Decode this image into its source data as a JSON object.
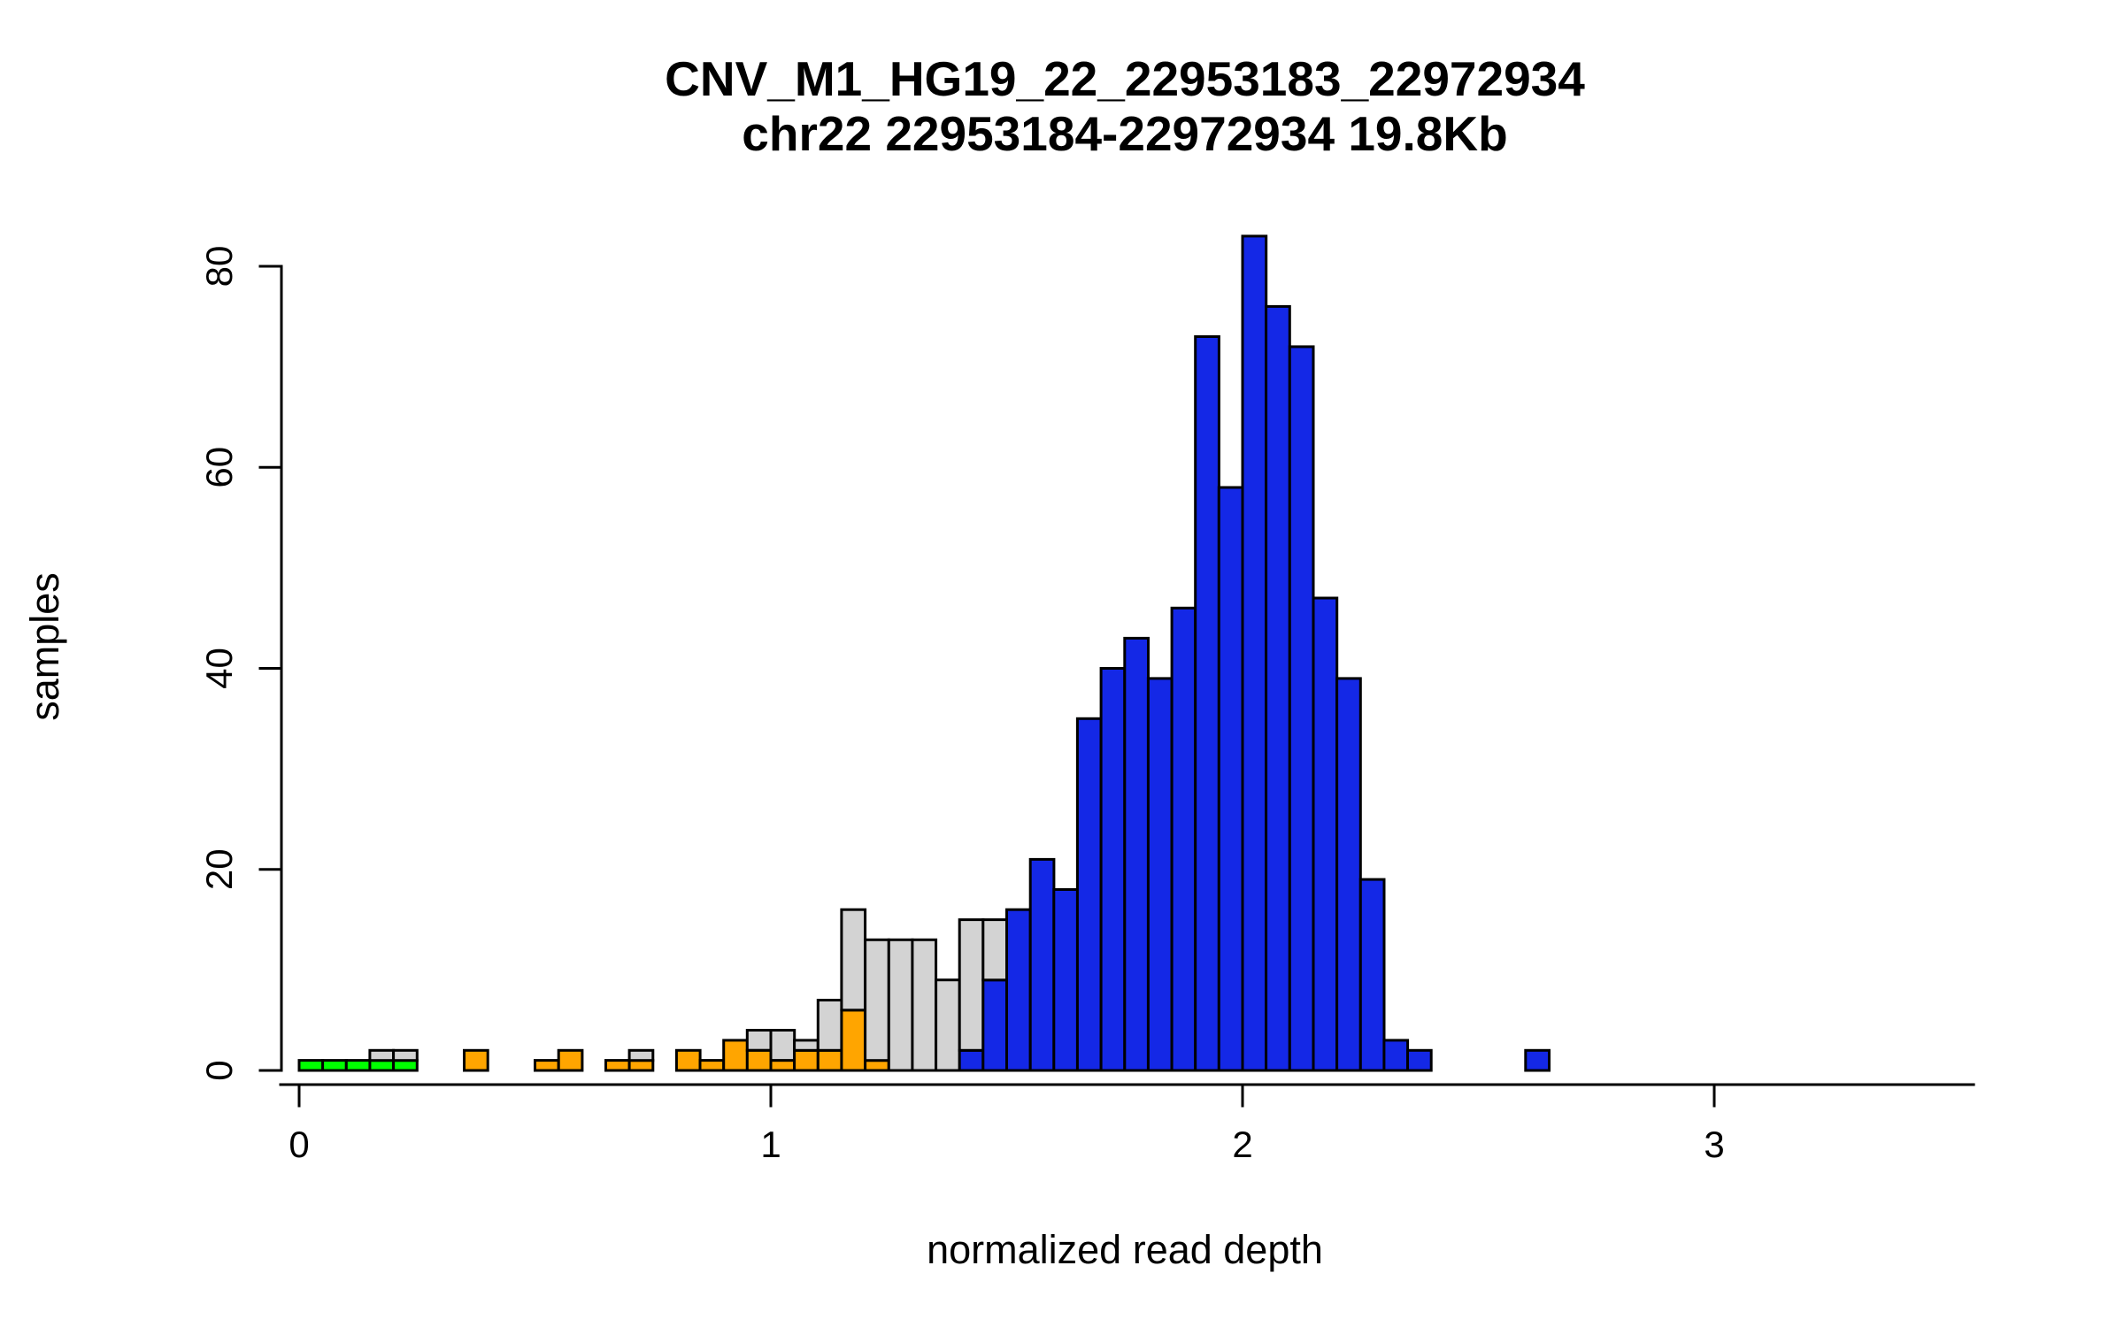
{
  "chart_data": {
    "type": "bar",
    "subtype": "histogram-stacked",
    "title": {
      "line1": "CNV_M1_HG19_22_22953183_22972934",
      "line2": "chr22 22953184-22972934 19.8Kb"
    },
    "xlabel": "normalized read depth",
    "ylabel": "samples",
    "x_ticks": [
      0,
      1,
      2,
      3
    ],
    "y_ticks": [
      0,
      20,
      40,
      60,
      80
    ],
    "xlim": [
      -0.05,
      3.55
    ],
    "ylim": [
      0,
      85
    ],
    "bin_width": 0.05,
    "grid": false,
    "legend": "none",
    "colors": {
      "green": "#00FF00",
      "orange": "#FFA500",
      "gray": "#D3D3D3",
      "blue": "#1428E6",
      "outline": "#000000"
    },
    "color_meaning": {
      "green": "copy-number-0-samples",
      "orange": "copy-number-1-samples",
      "gray": "uncalled-samples",
      "blue": "copy-number-2-samples"
    },
    "bins": [
      {
        "x": 0.0,
        "segments": [
          {
            "color": "green",
            "count": 1
          }
        ]
      },
      {
        "x": 0.05,
        "segments": [
          {
            "color": "green",
            "count": 1
          }
        ]
      },
      {
        "x": 0.1,
        "segments": [
          {
            "color": "green",
            "count": 1
          }
        ]
      },
      {
        "x": 0.15,
        "segments": [
          {
            "color": "green",
            "count": 1
          },
          {
            "color": "gray",
            "count": 1
          }
        ]
      },
      {
        "x": 0.2,
        "segments": [
          {
            "color": "green",
            "count": 1
          },
          {
            "color": "gray",
            "count": 1
          }
        ]
      },
      {
        "x": 0.35,
        "segments": [
          {
            "color": "orange",
            "count": 2
          }
        ]
      },
      {
        "x": 0.5,
        "segments": [
          {
            "color": "orange",
            "count": 1
          }
        ]
      },
      {
        "x": 0.55,
        "segments": [
          {
            "color": "orange",
            "count": 2
          }
        ]
      },
      {
        "x": 0.65,
        "segments": [
          {
            "color": "orange",
            "count": 1
          }
        ]
      },
      {
        "x": 0.7,
        "segments": [
          {
            "color": "orange",
            "count": 1
          },
          {
            "color": "gray",
            "count": 1
          }
        ]
      },
      {
        "x": 0.8,
        "segments": [
          {
            "color": "orange",
            "count": 2
          }
        ]
      },
      {
        "x": 0.85,
        "segments": [
          {
            "color": "orange",
            "count": 1
          }
        ]
      },
      {
        "x": 0.9,
        "segments": [
          {
            "color": "orange",
            "count": 3
          }
        ]
      },
      {
        "x": 0.95,
        "segments": [
          {
            "color": "orange",
            "count": 2
          },
          {
            "color": "gray",
            "count": 2
          }
        ]
      },
      {
        "x": 1.0,
        "segments": [
          {
            "color": "orange",
            "count": 1
          },
          {
            "color": "gray",
            "count": 3
          }
        ]
      },
      {
        "x": 1.05,
        "segments": [
          {
            "color": "orange",
            "count": 2
          },
          {
            "color": "gray",
            "count": 1
          }
        ]
      },
      {
        "x": 1.1,
        "segments": [
          {
            "color": "orange",
            "count": 2
          },
          {
            "color": "gray",
            "count": 5
          }
        ]
      },
      {
        "x": 1.15,
        "segments": [
          {
            "color": "orange",
            "count": 6
          },
          {
            "color": "gray",
            "count": 10
          }
        ]
      },
      {
        "x": 1.2,
        "segments": [
          {
            "color": "orange",
            "count": 1
          },
          {
            "color": "gray",
            "count": 12
          }
        ]
      },
      {
        "x": 1.25,
        "segments": [
          {
            "color": "gray",
            "count": 13
          }
        ]
      },
      {
        "x": 1.3,
        "segments": [
          {
            "color": "gray",
            "count": 13
          }
        ]
      },
      {
        "x": 1.35,
        "segments": [
          {
            "color": "gray",
            "count": 9
          }
        ]
      },
      {
        "x": 1.4,
        "segments": [
          {
            "color": "blue",
            "count": 2
          },
          {
            "color": "gray",
            "count": 13
          }
        ]
      },
      {
        "x": 1.45,
        "segments": [
          {
            "color": "blue",
            "count": 9
          },
          {
            "color": "gray",
            "count": 6
          }
        ]
      },
      {
        "x": 1.5,
        "segments": [
          {
            "color": "blue",
            "count": 16
          }
        ]
      },
      {
        "x": 1.55,
        "segments": [
          {
            "color": "blue",
            "count": 21
          }
        ]
      },
      {
        "x": 1.6,
        "segments": [
          {
            "color": "blue",
            "count": 18
          }
        ]
      },
      {
        "x": 1.65,
        "segments": [
          {
            "color": "blue",
            "count": 35
          }
        ]
      },
      {
        "x": 1.7,
        "segments": [
          {
            "color": "blue",
            "count": 40
          }
        ]
      },
      {
        "x": 1.75,
        "segments": [
          {
            "color": "blue",
            "count": 43
          }
        ]
      },
      {
        "x": 1.8,
        "segments": [
          {
            "color": "blue",
            "count": 39
          }
        ]
      },
      {
        "x": 1.85,
        "segments": [
          {
            "color": "blue",
            "count": 46
          }
        ]
      },
      {
        "x": 1.9,
        "segments": [
          {
            "color": "blue",
            "count": 73
          }
        ]
      },
      {
        "x": 1.95,
        "segments": [
          {
            "color": "blue",
            "count": 58
          }
        ]
      },
      {
        "x": 2.0,
        "segments": [
          {
            "color": "blue",
            "count": 83
          }
        ]
      },
      {
        "x": 2.05,
        "segments": [
          {
            "color": "blue",
            "count": 76
          }
        ]
      },
      {
        "x": 2.1,
        "segments": [
          {
            "color": "blue",
            "count": 72
          }
        ]
      },
      {
        "x": 2.15,
        "segments": [
          {
            "color": "blue",
            "count": 47
          }
        ]
      },
      {
        "x": 2.2,
        "segments": [
          {
            "color": "blue",
            "count": 39
          }
        ]
      },
      {
        "x": 2.25,
        "segments": [
          {
            "color": "blue",
            "count": 19
          }
        ]
      },
      {
        "x": 2.3,
        "segments": [
          {
            "color": "blue",
            "count": 3
          }
        ]
      },
      {
        "x": 2.35,
        "segments": [
          {
            "color": "blue",
            "count": 2
          }
        ]
      },
      {
        "x": 2.6,
        "segments": [
          {
            "color": "blue",
            "count": 2
          }
        ]
      }
    ]
  }
}
